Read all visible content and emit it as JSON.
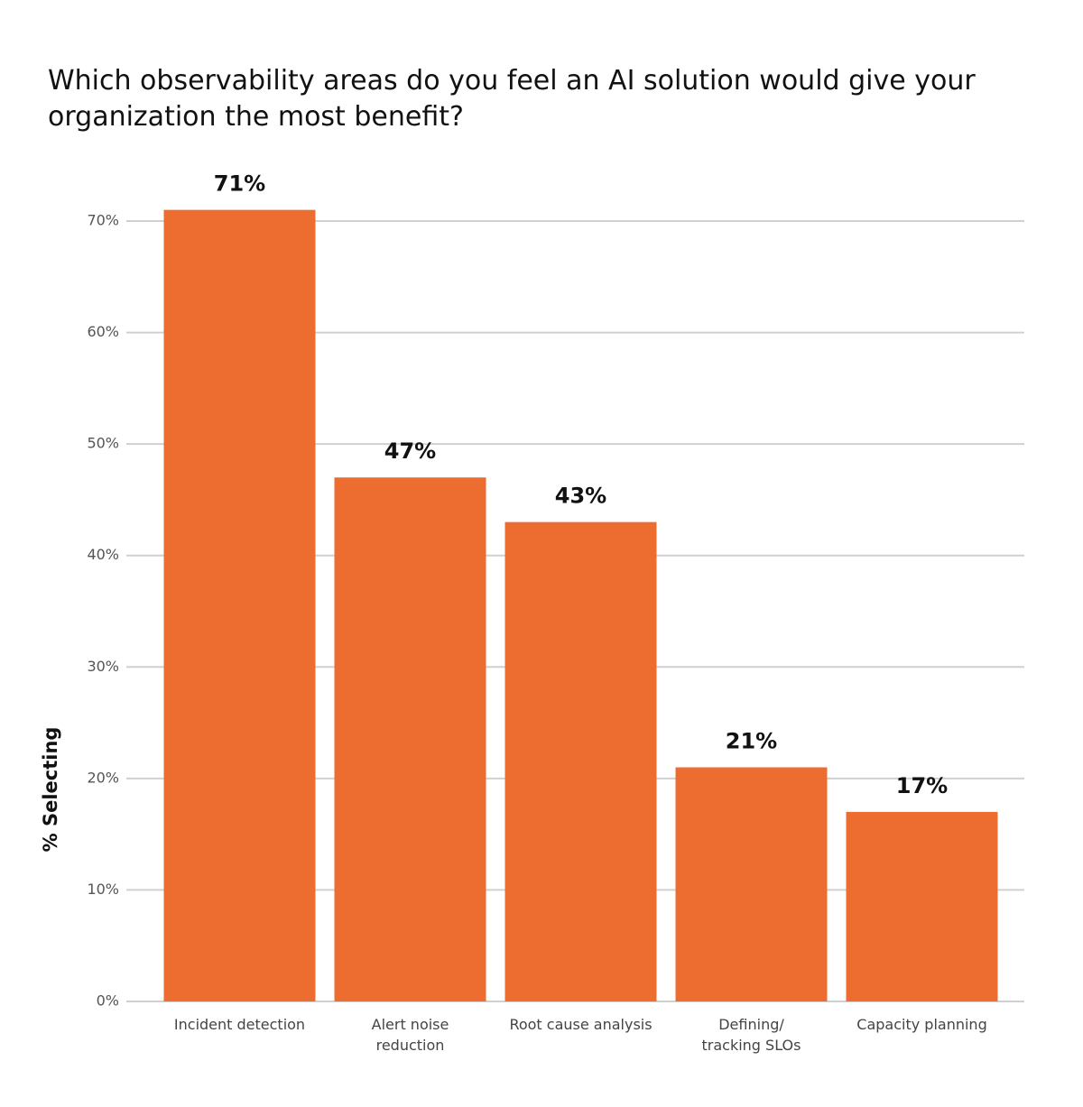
{
  "chart_data": {
    "type": "bar",
    "title": "Which observability areas do you feel an AI solution would give your organization the most benefit?",
    "y_label": "% Selecting",
    "categories": [
      "Incident detection",
      "Alert noise reduction",
      "Root cause analysis",
      "Defining/ tracking SLOs",
      "Capacity planning"
    ],
    "values": [
      71,
      47,
      43,
      21,
      17
    ],
    "value_labels": [
      "71%",
      "47%",
      "43%",
      "21%",
      "17%"
    ],
    "color": "#ed6c30",
    "ylim": [
      0,
      70
    ],
    "yticks": [
      {
        "value": 0,
        "label": "0%"
      },
      {
        "value": 10,
        "label": "10%"
      },
      {
        "value": 20,
        "label": "20%"
      },
      {
        "value": 30,
        "label": "30%"
      },
      {
        "value": 40,
        "label": "40%"
      },
      {
        "value": 50,
        "label": "50%"
      },
      {
        "value": 60,
        "label": "60%"
      },
      {
        "value": 70,
        "label": "70%"
      }
    ],
    "grid": true
  }
}
